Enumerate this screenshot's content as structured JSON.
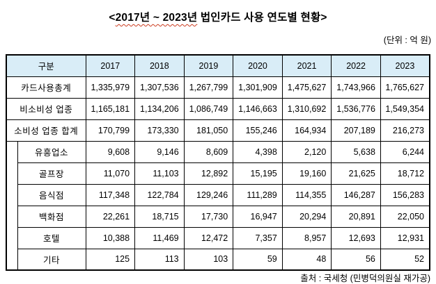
{
  "title": {
    "prefix": "<",
    "underlined": "2017년 ~ 2023년",
    "rest": " 법인카드 사용 연도별 현황>"
  },
  "unit_label": "(단위 : 억 원)",
  "colors": {
    "header_background": "#d9edf7",
    "table_border": "#000000",
    "spellcheck_underline": "#cc3b1e"
  },
  "table": {
    "header": [
      "구분",
      "2017",
      "2018",
      "2019",
      "2020",
      "2021",
      "2022",
      "2023"
    ],
    "rows": [
      {
        "label": "카드사용총계",
        "indent": false,
        "values": [
          "1,335,979",
          "1,307,536",
          "1,267,799",
          "1,301,909",
          "1,475,627",
          "1,743,966",
          "1,765,627"
        ]
      },
      {
        "label": "비소비성 업종",
        "indent": false,
        "values": [
          "1,165,181",
          "1,134,206",
          "1,086,749",
          "1,146,663",
          "1,310,692",
          "1,536,776",
          "1,549,354"
        ]
      },
      {
        "label": "소비성 업종 합계",
        "indent": false,
        "values": [
          "170,799",
          "173,330",
          "181,050",
          "155,246",
          "164,934",
          "207,189",
          "216,273"
        ]
      },
      {
        "label": "유흥업소",
        "indent": true,
        "values": [
          "9,608",
          "9,146",
          "8,609",
          "4,398",
          "2,120",
          "5,638",
          "6,244"
        ]
      },
      {
        "label": "골프장",
        "indent": true,
        "values": [
          "11,070",
          "11,103",
          "12,892",
          "15,195",
          "19,160",
          "21,625",
          "18,712"
        ]
      },
      {
        "label": "음식점",
        "indent": true,
        "values": [
          "117,348",
          "122,784",
          "129,246",
          "111,289",
          "114,355",
          "146,287",
          "156,283"
        ]
      },
      {
        "label": "백화점",
        "indent": true,
        "values": [
          "22,261",
          "18,715",
          "17,730",
          "16,947",
          "20,294",
          "20,891",
          "22,050"
        ]
      },
      {
        "label": "호텔",
        "indent": true,
        "values": [
          "10,388",
          "11,469",
          "12,472",
          "7,357",
          "8,957",
          "12,693",
          "12,931"
        ]
      },
      {
        "label": "기타",
        "indent": true,
        "values": [
          "125",
          "113",
          "103",
          "59",
          "48",
          "56",
          "52"
        ]
      }
    ]
  },
  "source": {
    "prefix": "출처 : 국세청 (",
    "underlined": "민병덕의원실",
    "suffix": " 재가공)"
  }
}
